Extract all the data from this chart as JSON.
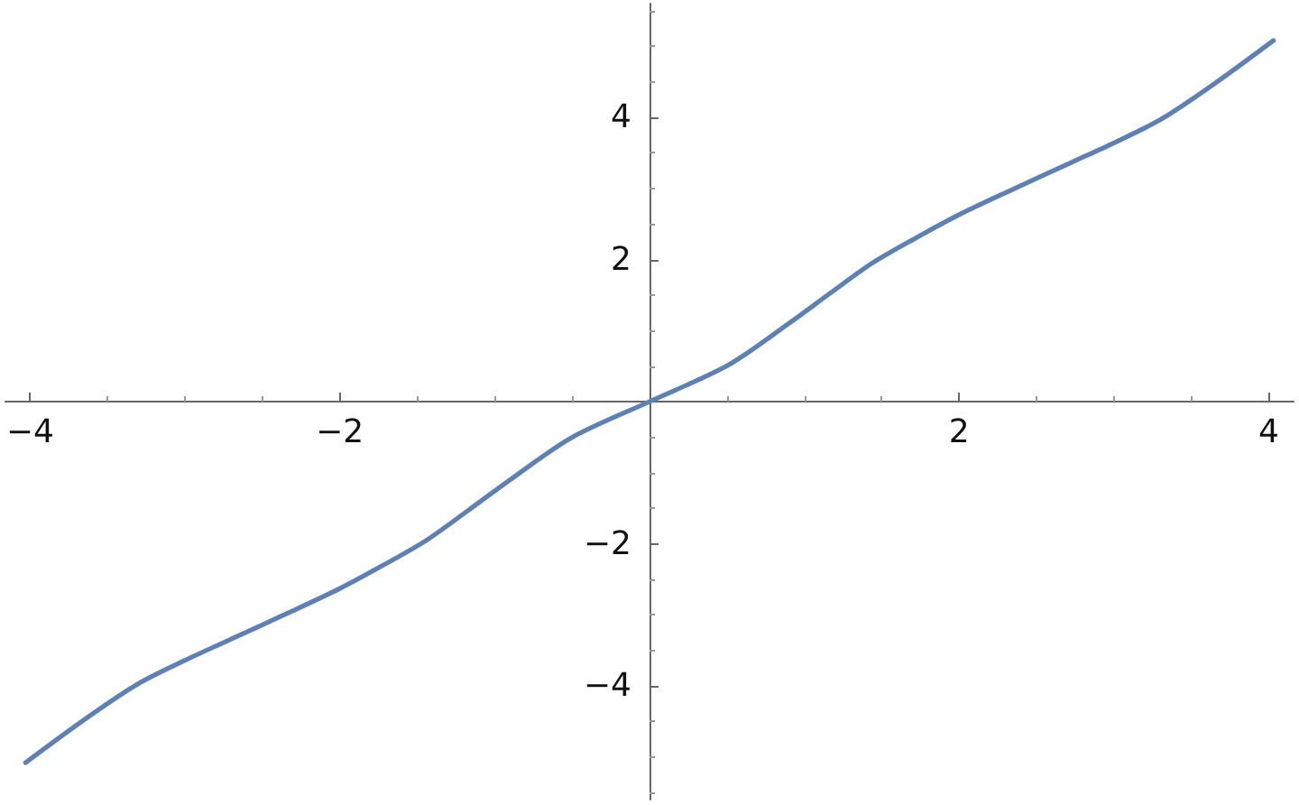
{
  "chart_data": {
    "type": "line",
    "xlim": [
      -4.16,
      4.16
    ],
    "ylim": [
      -5.6,
      5.6
    ],
    "xticks": [
      {
        "value": -4,
        "label": "−4"
      },
      {
        "value": -2,
        "label": "−2"
      },
      2,
      4
    ],
    "yticks": [
      {
        "value": -4,
        "label": "−4"
      },
      {
        "value": -2,
        "label": "−2"
      },
      2,
      4
    ],
    "grid": false,
    "marker": "none",
    "line_style": "solid",
    "series": [
      {
        "color": "#5e81b5",
        "x": [
          -4.03,
          -3.66,
          -3.31,
          -3.0,
          -2.73,
          -2.34,
          -2.0,
          -1.71,
          -1.44,
          -1.17,
          -0.9,
          -0.506,
          0,
          0.506,
          0.9,
          1.17,
          1.44,
          1.71,
          2.0,
          2.34,
          2.73,
          3.0,
          3.31,
          3.66,
          4.03
        ],
        "values": [
          -5.08,
          -4.49,
          -3.98,
          -3.64,
          -3.37,
          -2.98,
          -2.63,
          -2.29,
          -1.95,
          -1.53,
          -1.1,
          -0.51,
          0,
          0.51,
          1.1,
          1.53,
          1.95,
          2.29,
          2.63,
          2.98,
          3.37,
          3.64,
          3.98,
          4.49,
          5.08
        ]
      }
    ]
  }
}
